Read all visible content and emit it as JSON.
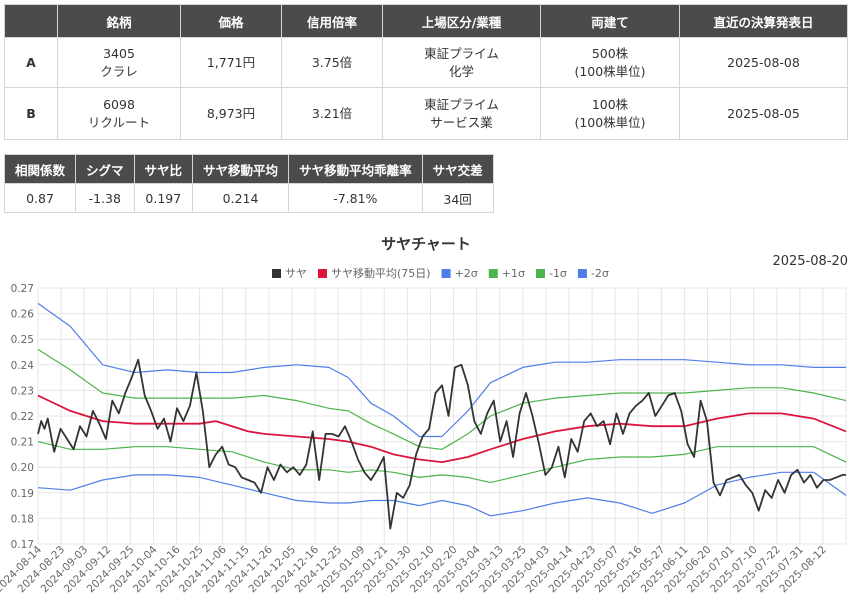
{
  "pairs_table": {
    "headers": [
      "",
      "銘柄",
      "価格",
      "信用倍率",
      "上場区分/業種",
      "両建て",
      "直近の決算発表日"
    ],
    "rows": [
      {
        "label": "A",
        "code": "3405",
        "name": "クラレ",
        "price": "1,771円",
        "margin": "3.75倍",
        "market": "東証プライム",
        "industry": "化学",
        "lot": "500株",
        "unit": "(100株単位)",
        "date": "2025-08-08"
      },
      {
        "label": "B",
        "code": "6098",
        "name": "リクルート",
        "price": "8,973円",
        "margin": "3.21倍",
        "market": "東証プライム",
        "industry": "サービス業",
        "lot": "100株",
        "unit": "(100株単位)",
        "date": "2025-08-05"
      }
    ]
  },
  "stats": {
    "headers": [
      "相関係数",
      "シグマ",
      "サヤ比",
      "サヤ移動平均",
      "サヤ移動平均乖離率",
      "サヤ交差"
    ],
    "values": [
      "0.87",
      "-1.38",
      "0.197",
      "0.214",
      "-7.81%",
      "34回"
    ]
  },
  "chart": {
    "title": "サヤチャート",
    "date": "2025-08-20"
  },
  "chart_data": {
    "type": "line",
    "title": "サヤチャート",
    "ylim": [
      0.17,
      0.27
    ],
    "yticks": [
      0.17,
      0.18,
      0.19,
      0.2,
      0.21,
      0.22,
      0.23,
      0.24,
      0.25,
      0.26,
      0.27
    ],
    "grid": true,
    "legend_position": "top",
    "x_tick_labels": [
      "2024-08-14",
      "2024-08-23",
      "2024-09-03",
      "2024-09-12",
      "2024-09-25",
      "2024-10-04",
      "2024-10-16",
      "2024-10-25",
      "2024-11-06",
      "2024-11-15",
      "2024-11-26",
      "2024-12-05",
      "2024-12-16",
      "2024-12-25",
      "2025-01-09",
      "2025-01-21",
      "2025-01-30",
      "2025-02-10",
      "2025-02-20",
      "2025-03-04",
      "2025-03-13",
      "2025-03-25",
      "2025-04-03",
      "2025-04-14",
      "2025-04-23",
      "2025-05-07",
      "2025-05-16",
      "2025-05-27",
      "2025-06-11",
      "2025-06-20",
      "2025-07-01",
      "2025-07-10",
      "2025-07-22",
      "2025-07-31",
      "2025-08-12"
    ],
    "n_points": 251,
    "series": [
      {
        "name": "サヤ",
        "color": "#333333",
        "width": 1.8,
        "x": [
          0,
          1,
          2,
          3,
          5,
          7,
          9,
          11,
          13,
          15,
          17,
          19,
          21,
          23,
          25,
          27,
          29,
          31,
          33,
          35,
          37,
          39,
          41,
          43,
          45,
          47,
          49,
          51,
          53,
          55,
          57,
          59,
          61,
          63,
          65,
          67,
          69,
          71,
          73,
          75,
          77,
          79,
          81,
          83,
          85,
          87,
          89,
          91,
          93,
          95,
          97,
          99,
          101,
          103,
          105,
          107,
          109,
          111,
          113,
          115,
          117,
          119,
          121,
          123,
          125,
          127,
          129,
          131,
          133,
          135,
          137,
          139,
          141,
          143,
          145,
          147,
          149,
          151,
          153,
          155,
          157,
          159,
          161,
          163,
          165,
          167,
          169,
          171,
          173,
          175,
          177,
          179,
          181,
          183,
          185,
          187,
          189,
          191,
          193,
          195,
          197,
          199,
          201,
          203,
          205,
          207,
          209,
          211,
          213,
          215,
          217,
          219,
          221,
          223,
          225,
          227,
          229,
          231,
          233,
          235,
          237,
          239,
          241,
          243,
          245,
          247,
          249,
          250
        ],
        "y": [
          0.213,
          0.218,
          0.215,
          0.219,
          0.206,
          0.215,
          0.211,
          0.207,
          0.216,
          0.212,
          0.222,
          0.217,
          0.211,
          0.226,
          0.221,
          0.229,
          0.235,
          0.242,
          0.228,
          0.222,
          0.215,
          0.219,
          0.21,
          0.223,
          0.218,
          0.224,
          0.237,
          0.222,
          0.2,
          0.205,
          0.208,
          0.201,
          0.2,
          0.196,
          0.195,
          0.194,
          0.19,
          0.2,
          0.195,
          0.201,
          0.198,
          0.2,
          0.197,
          0.201,
          0.214,
          0.195,
          0.213,
          0.213,
          0.212,
          0.216,
          0.21,
          0.203,
          0.198,
          0.195,
          0.199,
          0.204,
          0.176,
          0.19,
          0.188,
          0.193,
          0.205,
          0.212,
          0.215,
          0.229,
          0.232,
          0.22,
          0.239,
          0.24,
          0.232,
          0.218,
          0.213,
          0.221,
          0.226,
          0.21,
          0.218,
          0.204,
          0.221,
          0.229,
          0.22,
          0.209,
          0.197,
          0.2,
          0.208,
          0.196,
          0.211,
          0.206,
          0.218,
          0.221,
          0.216,
          0.218,
          0.209,
          0.221,
          0.213,
          0.221,
          0.224,
          0.226,
          0.229,
          0.22,
          0.224,
          0.228,
          0.229,
          0.222,
          0.209,
          0.204,
          0.226,
          0.218,
          0.194,
          0.189,
          0.195,
          0.196,
          0.197,
          0.193,
          0.19,
          0.183,
          0.191,
          0.188,
          0.195,
          0.19,
          0.197,
          0.199,
          0.194,
          0.197,
          0.192,
          0.195,
          0.195,
          0.196,
          0.197,
          0.197
        ]
      },
      {
        "name": "サヤ移動平均(75日)",
        "color": "#dc143c",
        "width": 1.8,
        "x": [
          0,
          10,
          20,
          30,
          40,
          50,
          55,
          65,
          70,
          80,
          90,
          96,
          103,
          110,
          118,
          125,
          133,
          140,
          150,
          160,
          170,
          180,
          190,
          200,
          210,
          220,
          230,
          240,
          250
        ],
        "y": [
          0.228,
          0.222,
          0.218,
          0.217,
          0.217,
          0.217,
          0.218,
          0.214,
          0.213,
          0.212,
          0.211,
          0.21,
          0.208,
          0.205,
          0.203,
          0.202,
          0.204,
          0.207,
          0.211,
          0.214,
          0.216,
          0.217,
          0.216,
          0.216,
          0.219,
          0.221,
          0.221,
          0.219,
          0.214
        ]
      },
      {
        "name": "+2σ",
        "color": "#4f7ee8",
        "width": 1.2,
        "x": [
          0,
          10,
          20,
          30,
          40,
          50,
          60,
          70,
          80,
          90,
          96,
          103,
          110,
          118,
          125,
          133,
          140,
          150,
          160,
          170,
          180,
          190,
          200,
          210,
          220,
          230,
          240,
          250
        ],
        "y": [
          0.264,
          0.255,
          0.24,
          0.237,
          0.238,
          0.237,
          0.237,
          0.239,
          0.24,
          0.239,
          0.235,
          0.225,
          0.22,
          0.212,
          0.212,
          0.222,
          0.233,
          0.239,
          0.241,
          0.241,
          0.242,
          0.242,
          0.242,
          0.241,
          0.24,
          0.24,
          0.239,
          0.239
        ]
      },
      {
        "name": "+1σ",
        "color": "#4cb44c",
        "width": 1.2,
        "x": [
          0,
          10,
          20,
          30,
          40,
          50,
          60,
          70,
          80,
          90,
          96,
          103,
          110,
          118,
          125,
          133,
          140,
          150,
          160,
          170,
          180,
          190,
          200,
          210,
          220,
          230,
          240,
          250
        ],
        "y": [
          0.246,
          0.238,
          0.229,
          0.227,
          0.227,
          0.227,
          0.227,
          0.228,
          0.226,
          0.223,
          0.222,
          0.217,
          0.213,
          0.208,
          0.207,
          0.213,
          0.22,
          0.225,
          0.227,
          0.228,
          0.229,
          0.229,
          0.229,
          0.23,
          0.231,
          0.231,
          0.229,
          0.226
        ]
      },
      {
        "name": "-1σ",
        "color": "#4cb44c",
        "width": 1.2,
        "x": [
          0,
          10,
          20,
          30,
          40,
          50,
          60,
          70,
          80,
          90,
          96,
          103,
          110,
          118,
          125,
          133,
          140,
          150,
          160,
          170,
          180,
          190,
          200,
          210,
          220,
          230,
          240,
          250
        ],
        "y": [
          0.21,
          0.207,
          0.207,
          0.208,
          0.208,
          0.207,
          0.206,
          0.202,
          0.199,
          0.199,
          0.198,
          0.199,
          0.198,
          0.196,
          0.197,
          0.196,
          0.194,
          0.197,
          0.2,
          0.203,
          0.204,
          0.204,
          0.205,
          0.208,
          0.208,
          0.208,
          0.208,
          0.202
        ]
      },
      {
        "name": "-2σ",
        "color": "#4f7ee8",
        "width": 1.2,
        "x": [
          0,
          10,
          20,
          30,
          40,
          50,
          60,
          70,
          80,
          90,
          96,
          103,
          110,
          118,
          125,
          133,
          140,
          150,
          160,
          170,
          180,
          190,
          200,
          210,
          220,
          230,
          240,
          250
        ],
        "y": [
          0.192,
          0.191,
          0.195,
          0.197,
          0.197,
          0.196,
          0.193,
          0.19,
          0.187,
          0.186,
          0.186,
          0.187,
          0.187,
          0.185,
          0.187,
          0.185,
          0.181,
          0.183,
          0.186,
          0.188,
          0.186,
          0.182,
          0.186,
          0.193,
          0.196,
          0.198,
          0.198,
          0.189
        ]
      }
    ]
  }
}
